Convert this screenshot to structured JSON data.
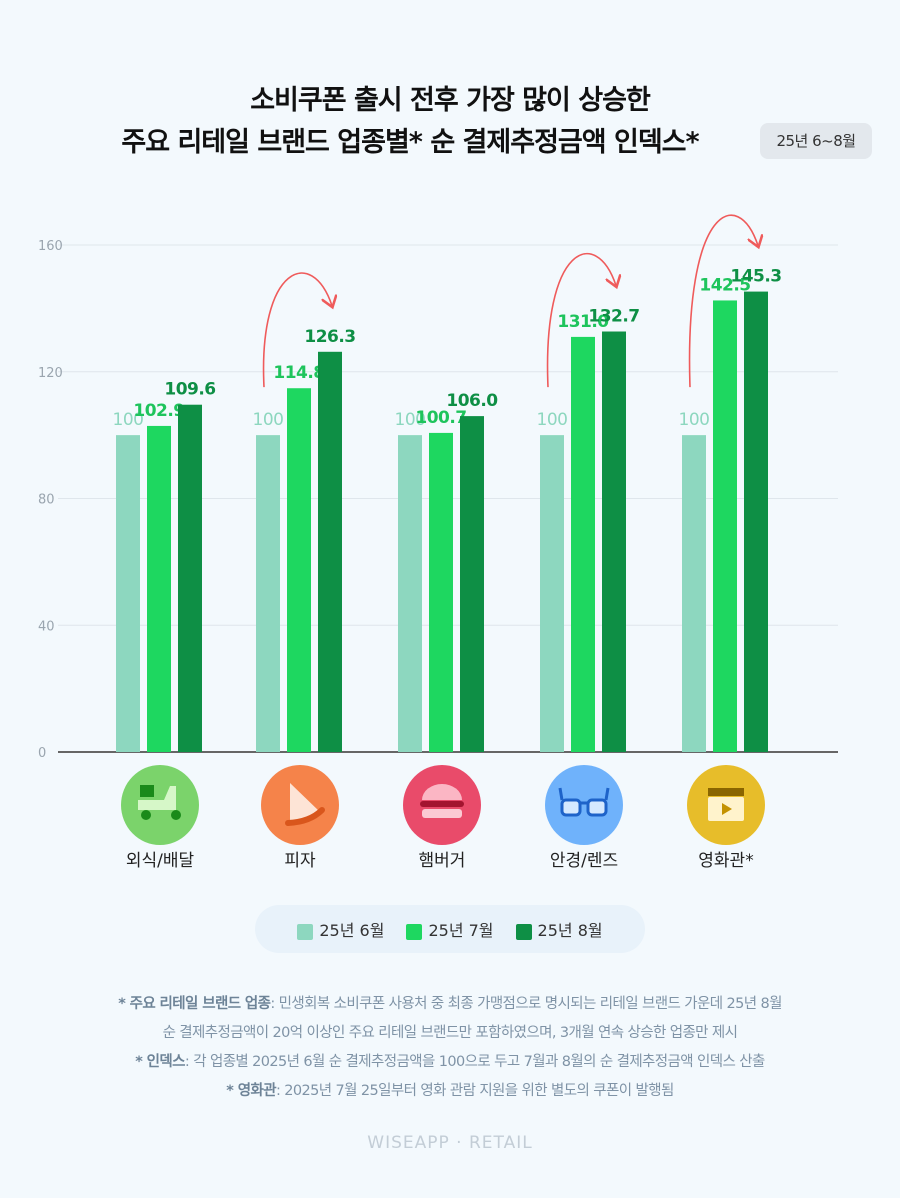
{
  "title_line1": "소비쿠폰 출시 전후 가장 많이 상승한",
  "title_line2": "주요 리테일 브랜드 업종별* 순 결제추정금액 인덱스*",
  "period_badge": "25년 6~8월",
  "colors": {
    "jun": "#8dd7bf",
    "jul": "#1ed760",
    "aug": "#0e8f45",
    "arrow": "#ef5b5b"
  },
  "icons": [
    "scooter-icon",
    "pizza-icon",
    "burger-icon",
    "glasses-icon",
    "clapperboard-icon"
  ],
  "chart_data": {
    "type": "bar",
    "title": "소비쿠폰 출시 전후 가장 많이 상승한 주요 리테일 브랜드 업종별* 순 결제추정금액 인덱스*",
    "categories": [
      "외식/배달",
      "피자",
      "햄버거",
      "안경/렌즈",
      "영화관*"
    ],
    "series": [
      {
        "name": "25년 6월",
        "values": [
          100,
          100,
          100,
          100,
          100
        ],
        "labels": [
          "100",
          "100",
          "100",
          "100",
          "100"
        ]
      },
      {
        "name": "25년 7월",
        "values": [
          102.9,
          114.8,
          100.7,
          131.0,
          142.5
        ],
        "labels": [
          "102.9",
          "114.8",
          "100.7",
          "131.0",
          "142.5"
        ]
      },
      {
        "name": "25년 8월",
        "values": [
          109.6,
          126.3,
          106.0,
          132.7,
          145.3
        ],
        "labels": [
          "109.6",
          "126.3",
          "106.0",
          "132.7",
          "145.3"
        ]
      }
    ],
    "arrows_on": [
      1,
      3,
      4
    ],
    "ylim": [
      0,
      160
    ],
    "yticks": [
      "0",
      "40",
      "80",
      "120",
      "160"
    ],
    "grid": true,
    "legend": "bottom"
  },
  "notes": [
    {
      "bold": "* 주요 리테일 브랜드 업종",
      "text": ": 민생회복 소비쿠폰 사용처 중 최종 가맹점으로 명시되는 리테일 브랜드 가운데 25년 8월"
    },
    {
      "bold": "",
      "text": "순 결제추정금액이 20억 이상인 주요 리테일 브랜드만 포함하였으며, 3개월 연속 상승한 업종만 제시"
    },
    {
      "bold": "* 인덱스",
      "text": ": 각 업종별 2025년 6월 순 결제추정금액을 100으로 두고 7월과 8월의 순 결제추정금액 인덱스 산출"
    },
    {
      "bold": "* 영화관",
      "text": ": 2025년 7월 25일부터 영화 관람 지원을 위한 별도의 쿠폰이 발행됨"
    }
  ],
  "footer": "WISEAPP · RETAIL"
}
